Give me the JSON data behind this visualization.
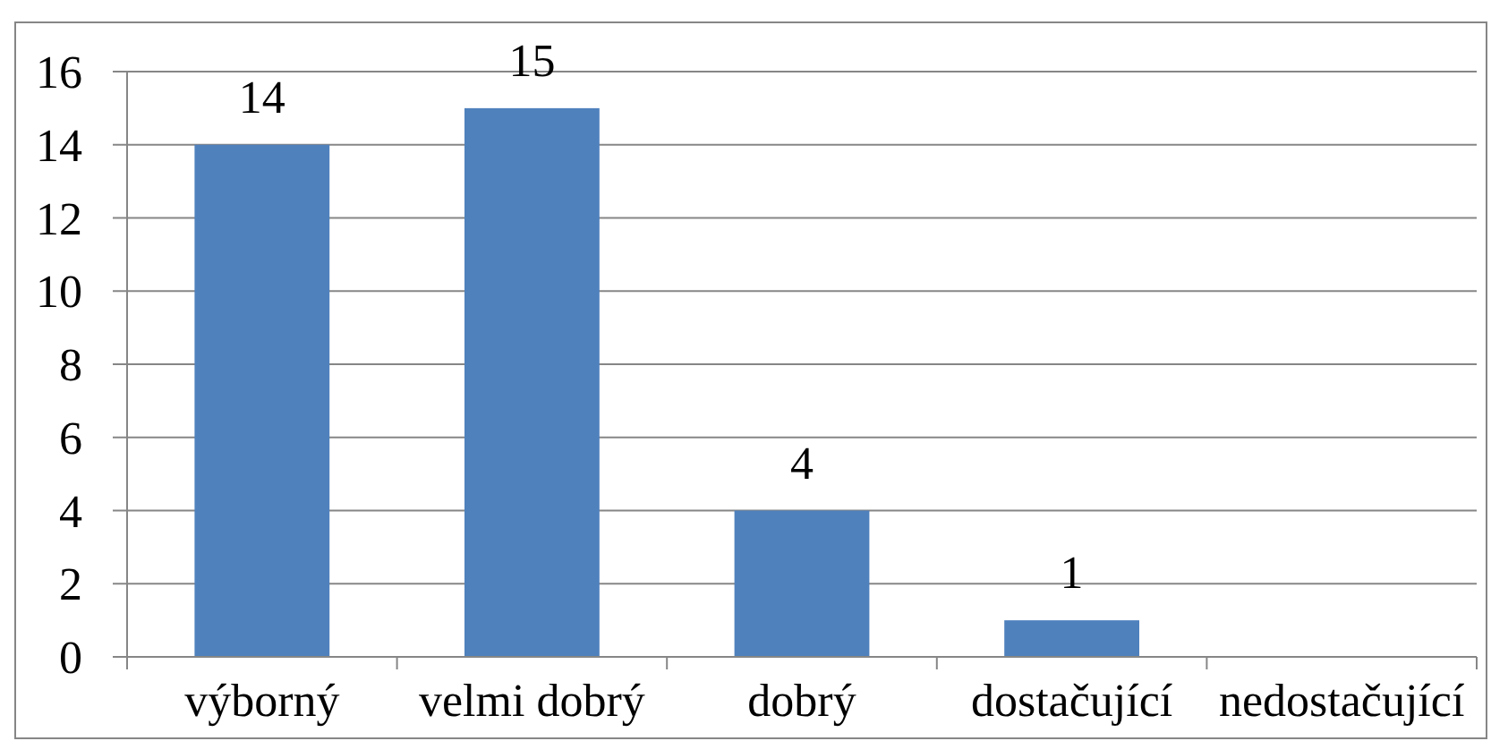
{
  "chart_data": {
    "type": "bar",
    "categories": [
      "výborný",
      "velmi dobrý",
      "dobrý",
      "dostačující",
      "nedostačující"
    ],
    "values": [
      14,
      15,
      4,
      1,
      0
    ],
    "color": "#4f81bd",
    "ylim": [
      0,
      16
    ],
    "yticks": [
      0,
      2,
      4,
      6,
      8,
      10,
      12,
      14,
      16
    ],
    "grid": "y",
    "value_labels": [
      "14",
      "15",
      "4",
      "1",
      null
    ]
  }
}
